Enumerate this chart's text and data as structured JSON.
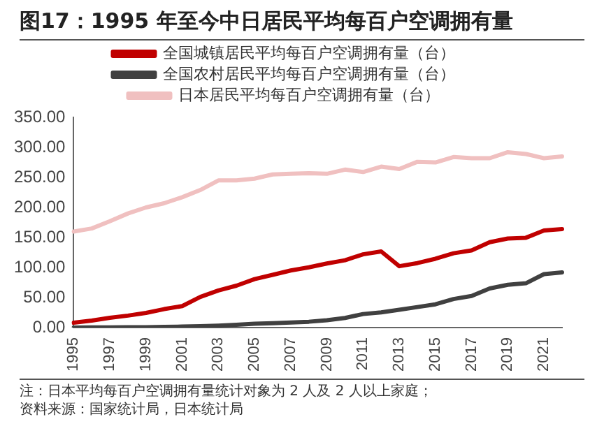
{
  "chart_data": {
    "type": "line",
    "title": "图17：1995 年至今中日居民平均每百户空调拥有量",
    "categories": [
      "1995",
      null,
      "1997",
      null,
      "1999",
      null,
      "2001",
      null,
      "2003",
      null,
      "2005",
      null,
      "2007",
      null,
      "2009",
      null,
      "2011",
      null,
      "2013",
      null,
      "2015",
      null,
      "2017",
      null,
      "2019",
      null,
      "2021",
      null
    ],
    "series": [
      {
        "name": "全国城镇居民平均每百户空调拥有量（台）",
        "color": "#c00000",
        "values": [
          8.1,
          11.6,
          16.3,
          20,
          24.5,
          30.8,
          35.8,
          51.1,
          61.8,
          69.8,
          80.7,
          87.8,
          95.1,
          100.3,
          106.8,
          112.1,
          122,
          126.8,
          102.2,
          107.4,
          114.6,
          123.7,
          128.6,
          142.2,
          148.3,
          149.6,
          161.7,
          164
        ]
      },
      {
        "name": "全国农村居民平均每百户空调拥有量（台）",
        "color": "#404040",
        "values": [
          0.2,
          0.3,
          0.4,
          0.6,
          0.7,
          1.3,
          1.7,
          2.3,
          3.4,
          4.7,
          6.4,
          7.3,
          8.5,
          9.8,
          12.2,
          16,
          22.6,
          25.4,
          29.8,
          34.2,
          38.8,
          47.6,
          52.6,
          65.2,
          71.3,
          73.8,
          89,
          92
        ]
      },
      {
        "name": "日本居民平均每百户空调拥有量（台）",
        "color": "#f0c0c0",
        "values": [
          160,
          165,
          177,
          190,
          200,
          207,
          217,
          229,
          245,
          245,
          248,
          255,
          256,
          257,
          256,
          263,
          259,
          268,
          264,
          276,
          275,
          284,
          282,
          282,
          292,
          289,
          282,
          285
        ]
      }
    ],
    "ylim": [
      0,
      350
    ],
    "yticks": [
      {
        "value": 0,
        "label": "0.00"
      },
      {
        "value": 50,
        "label": "50.00"
      },
      {
        "value": 100,
        "label": "100.00"
      },
      {
        "value": 150,
        "label": "150.00"
      },
      {
        "value": 200,
        "label": "200.00"
      },
      {
        "value": 250,
        "label": "250.00"
      },
      {
        "value": 300,
        "label": "300.00"
      },
      {
        "value": 350,
        "label": "350.00"
      }
    ],
    "grid": false,
    "legend": "top",
    "marker": "none",
    "annotations": [
      "注：日本平均每百户空调拥有量统计对象为 2 人及 2 人以上家庭；",
      "资料来源：国家统计局，日本统计局"
    ]
  }
}
